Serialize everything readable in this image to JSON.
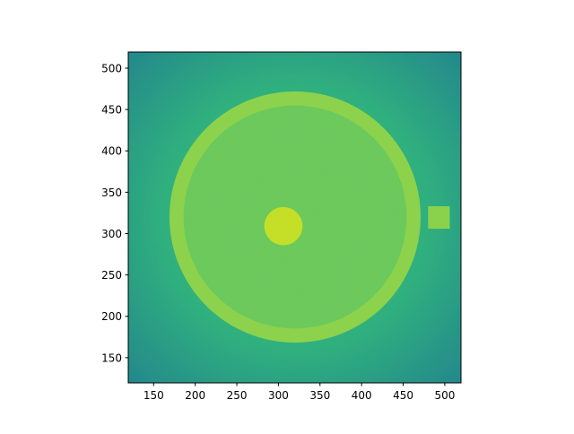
{
  "chart_data": {
    "type": "heatmap",
    "colormap": "viridis",
    "title": "",
    "xlabel": "",
    "ylabel": "",
    "xlim": [
      119.5,
      519.5
    ],
    "ylim": [
      119.5,
      519.5
    ],
    "xticks": [
      150,
      200,
      250,
      300,
      350,
      400,
      450,
      500
    ],
    "yticks": [
      150,
      200,
      250,
      300,
      350,
      400,
      450,
      500
    ],
    "grid": false,
    "colors": {
      "background": "#2fb07e",
      "corner": "#22868c",
      "interior": "#6cc95c",
      "ring": "#8cd24c",
      "disk": "#c4df26",
      "square": "#8ad24c"
    },
    "features": [
      {
        "shape": "ring",
        "cx": 320,
        "cy": 320,
        "r_outer": 151,
        "r_inner": 134,
        "level": "high"
      },
      {
        "shape": "disk",
        "cx": 320,
        "cy": 320,
        "r": 134,
        "level": "medium"
      },
      {
        "shape": "disk",
        "cx": 306,
        "cy": 309,
        "r": 23,
        "level": "highest"
      },
      {
        "shape": "square",
        "x0": 480,
        "x1": 506,
        "y0": 306,
        "y1": 333,
        "level": "high"
      }
    ]
  }
}
